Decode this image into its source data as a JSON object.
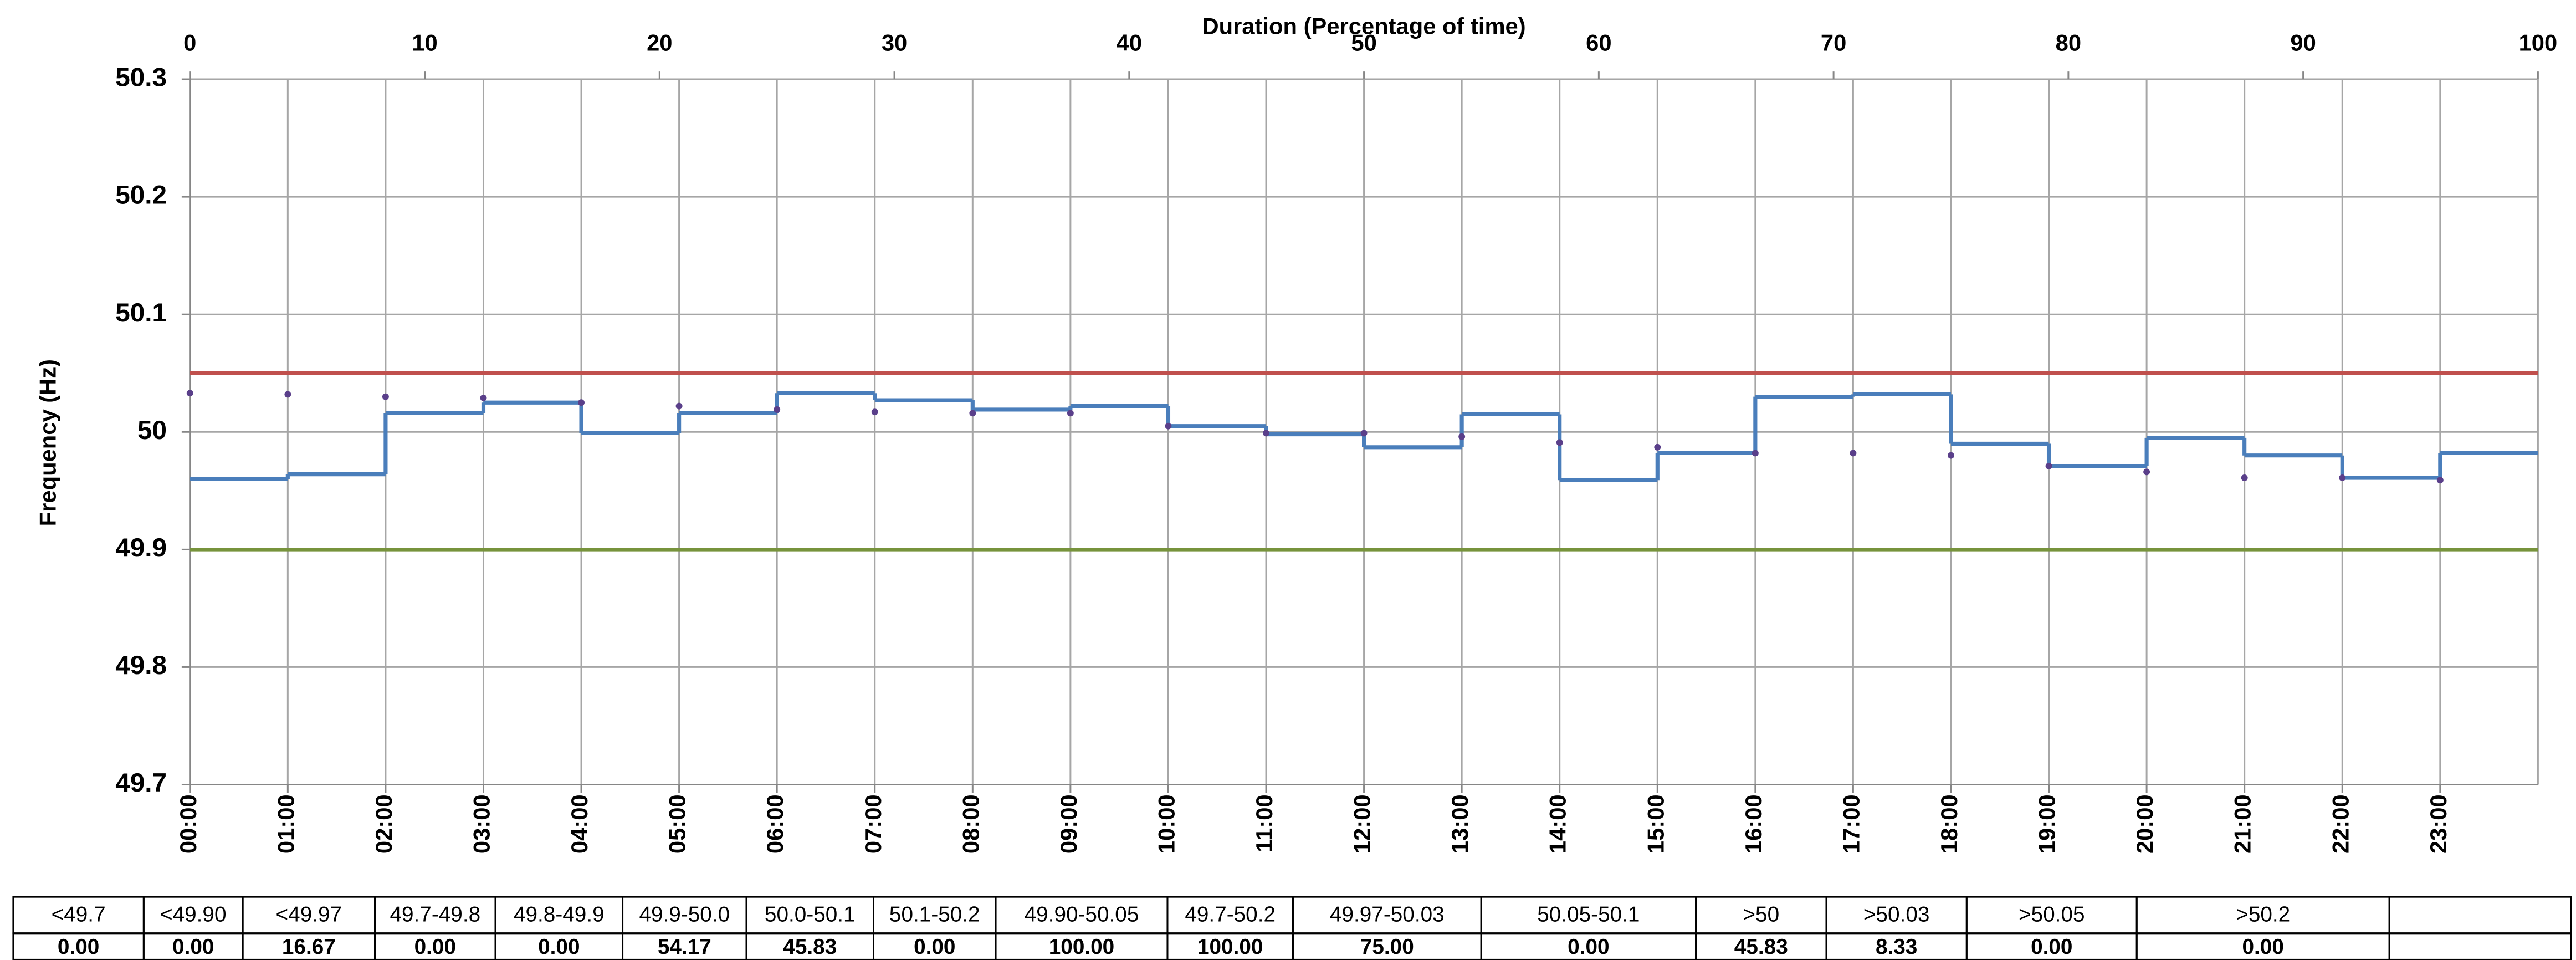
{
  "chart_data": {
    "type": "line",
    "title": "Duration (Percentage of time)",
    "ylabel": "Frequency (Hz)",
    "categories": [
      "00:00",
      "01:00",
      "02:00",
      "03:00",
      "04:00",
      "05:00",
      "06:00",
      "07:00",
      "08:00",
      "09:00",
      "10:00",
      "11:00",
      "12:00",
      "13:00",
      "14:00",
      "15:00",
      "16:00",
      "17:00",
      "18:00",
      "19:00",
      "20:00",
      "21:00",
      "22:00",
      "23:00"
    ],
    "series": [
      {
        "style": "step",
        "color": "#4a7ebb",
        "values": [
          49.96,
          49.964,
          50.016,
          50.025,
          49.999,
          50.016,
          50.033,
          50.027,
          50.019,
          50.022,
          50.005,
          49.998,
          49.987,
          50.015,
          49.959,
          49.982,
          50.03,
          50.032,
          49.99,
          49.971,
          49.995,
          49.98,
          49.961,
          49.982
        ]
      },
      {
        "style": "dots",
        "color": "#5a3f8a",
        "values": [
          50.033,
          50.032,
          50.03,
          50.029,
          50.025,
          50.022,
          50.019,
          50.017,
          50.016,
          50.016,
          50.005,
          49.999,
          49.999,
          49.996,
          49.991,
          49.987,
          49.982,
          49.982,
          49.98,
          49.971,
          49.966,
          49.961,
          49.961,
          49.959
        ]
      }
    ],
    "reference_lines": [
      {
        "value": 50.05,
        "color": "#c0504d"
      },
      {
        "value": 49.9,
        "color": "#77933c"
      }
    ],
    "ylim": [
      49.7,
      50.3
    ],
    "yticks": [
      49.7,
      49.8,
      49.9,
      50,
      50.1,
      50.2,
      50.3
    ],
    "x2lim": [
      0,
      100
    ],
    "x2ticks": [
      0,
      10,
      20,
      30,
      40,
      50,
      60,
      70,
      80,
      90,
      100
    ],
    "grid": true
  },
  "table": {
    "headers": [
      "<49.7",
      "<49.90",
      "<49.97",
      "49.7-49.8",
      "49.8-49.9",
      "49.9-50.0",
      "50.0-50.1",
      "50.1-50.2",
      "49.90-50.05",
      "49.7-50.2",
      "49.97-50.03",
      "50.05-50.1",
      ">50",
      ">50.03",
      ">50.05",
      ">50.2"
    ],
    "rows": [
      [
        "0.00",
        "0.00",
        "16.67",
        "0.00",
        "0.00",
        "54.17",
        "45.83",
        "0.00",
        "100.00",
        "100.00",
        "75.00",
        "0.00",
        "45.83",
        "8.33",
        "0.00",
        "0.00"
      ]
    ]
  }
}
